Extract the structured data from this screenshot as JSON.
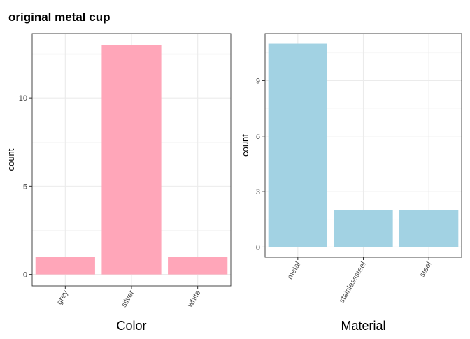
{
  "title": "original metal cup",
  "chart_data": [
    {
      "type": "bar",
      "categories": [
        "grey",
        "silver",
        "white"
      ],
      "values": [
        1,
        13,
        1
      ],
      "xlabel": "Color",
      "ylabel": "count",
      "yticks": [
        0,
        5,
        10
      ],
      "ylim": [
        -0.65,
        13.65
      ],
      "bar_color": "#FFA6B9",
      "grid": true
    },
    {
      "type": "bar",
      "categories": [
        "metal",
        "stainlesssteel",
        "steel"
      ],
      "values": [
        11,
        2,
        2
      ],
      "xlabel": "Material",
      "ylabel": "count",
      "yticks": [
        0,
        3,
        6,
        9
      ],
      "ylim": [
        -0.55,
        11.55
      ],
      "bar_color": "#A2D2E3",
      "grid": true
    }
  ]
}
